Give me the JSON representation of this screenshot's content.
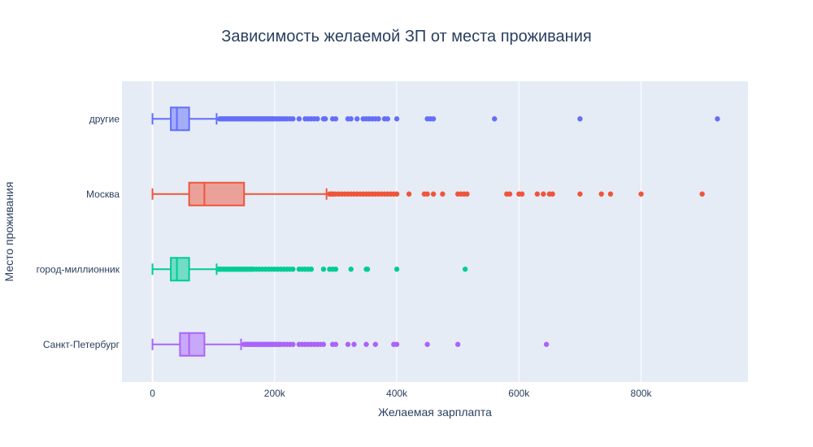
{
  "chart_data": {
    "type": "box",
    "orientation": "horizontal",
    "title": "Зависимость желаемой ЗП от места проживания",
    "xlabel": "Желаемая зарплапта",
    "ylabel": "Место проживания",
    "xlim": [
      -50000,
      975000
    ],
    "x_ticks": [
      0,
      200000,
      400000,
      600000,
      800000
    ],
    "x_tick_labels": [
      "0",
      "200k",
      "400k",
      "600k",
      "800k"
    ],
    "grid": true,
    "legend": "none",
    "categories": [
      "другие",
      "Москва",
      "город-миллионник",
      "Санкт-Петербург"
    ],
    "series": [
      {
        "category": "другие",
        "color": "#636efa",
        "whisker_low": 0,
        "q1": 30000,
        "median": 40000,
        "q3": 60000,
        "whisker_high": 105000,
        "outliers": [
          110000,
          113000,
          116000,
          119000,
          122000,
          125000,
          128000,
          131000,
          134000,
          137000,
          140000,
          143000,
          146000,
          149000,
          152000,
          155000,
          158000,
          161000,
          164000,
          167000,
          170000,
          173000,
          176000,
          179000,
          182000,
          185000,
          188000,
          191000,
          194000,
          197000,
          200000,
          204000,
          208000,
          212000,
          216000,
          220000,
          225000,
          230000,
          240000,
          250000,
          255000,
          260000,
          265000,
          270000,
          280000,
          283000,
          295000,
          300000,
          320000,
          325000,
          335000,
          345000,
          350000,
          355000,
          360000,
          365000,
          370000,
          380000,
          385000,
          400000,
          450000,
          455000,
          460000,
          560000,
          700000,
          925000
        ]
      },
      {
        "category": "Москва",
        "color": "#ef553b",
        "whisker_low": 0,
        "q1": 60000,
        "median": 85000,
        "q3": 150000,
        "whisker_high": 285000,
        "outliers": [
          290000,
          293000,
          296000,
          300000,
          305000,
          310000,
          315000,
          320000,
          325000,
          330000,
          335000,
          340000,
          345000,
          350000,
          355000,
          360000,
          365000,
          370000,
          375000,
          380000,
          385000,
          390000,
          395000,
          400000,
          420000,
          445000,
          450000,
          460000,
          475000,
          500000,
          505000,
          510000,
          515000,
          580000,
          585000,
          600000,
          605000,
          630000,
          640000,
          650000,
          655000,
          700000,
          735000,
          750000,
          800000,
          900000
        ]
      },
      {
        "category": "город-миллионник",
        "color": "#00cc96",
        "whisker_low": 0,
        "q1": 30000,
        "median": 40000,
        "q3": 60000,
        "whisker_high": 105000,
        "outliers": [
          108000,
          111000,
          114000,
          117000,
          120000,
          123000,
          126000,
          129000,
          132000,
          135000,
          138000,
          141000,
          144000,
          147000,
          150000,
          153000,
          156000,
          159000,
          162000,
          165000,
          170000,
          175000,
          180000,
          185000,
          190000,
          195000,
          200000,
          205000,
          210000,
          215000,
          220000,
          225000,
          230000,
          240000,
          245000,
          250000,
          255000,
          260000,
          280000,
          290000,
          295000,
          300000,
          325000,
          350000,
          352000,
          400000,
          512000
        ]
      },
      {
        "category": "Санкт-Петербург",
        "color": "#ab63fa",
        "whisker_low": 0,
        "q1": 45000,
        "median": 60000,
        "q3": 85000,
        "whisker_high": 145000,
        "outliers": [
          150000,
          153000,
          156000,
          159000,
          162000,
          165000,
          168000,
          171000,
          174000,
          177000,
          180000,
          183000,
          186000,
          189000,
          192000,
          195000,
          198000,
          201000,
          204000,
          207000,
          210000,
          215000,
          220000,
          225000,
          230000,
          240000,
          245000,
          250000,
          255000,
          260000,
          265000,
          270000,
          275000,
          280000,
          295000,
          300000,
          320000,
          330000,
          350000,
          365000,
          395000,
          400000,
          450000,
          500000,
          645000
        ]
      }
    ]
  }
}
